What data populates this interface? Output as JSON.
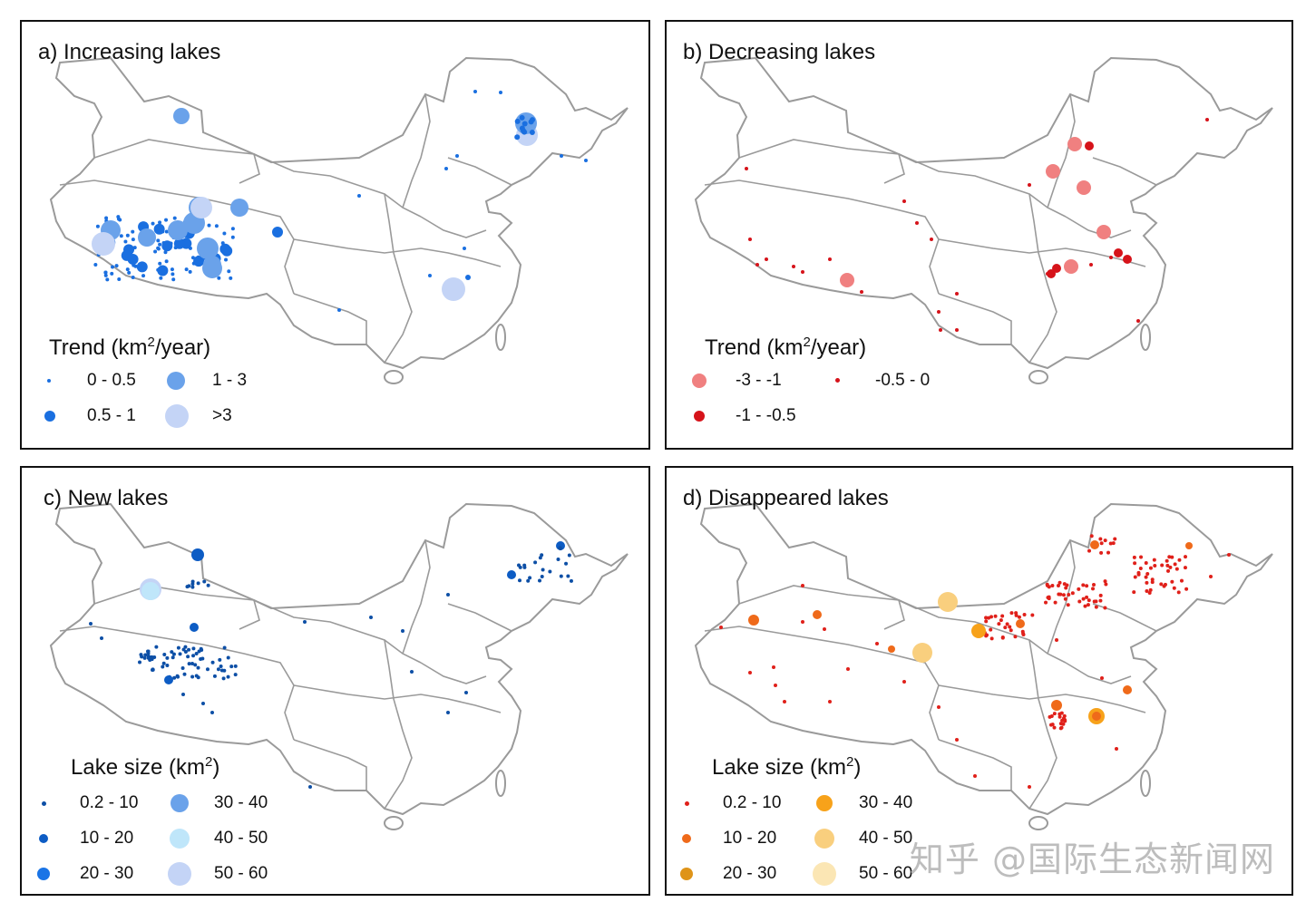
{
  "panels": {
    "a": {
      "title": "a) Increasing lakes",
      "legend_title_pre": "Trend (km",
      "legend_title_sup": "2",
      "legend_title_post": "/year)",
      "legend": [
        {
          "label": "0 - 0.5",
          "color": "#1a6fe0"
        },
        {
          "label": "1 - 3",
          "color": "#6aa2ea"
        },
        {
          "label": "0.5 - 1",
          "color": "#1a6fe0"
        },
        {
          "label": ">3",
          "color": "#c4d4f6"
        }
      ]
    },
    "b": {
      "title": "b) Decreasing lakes",
      "legend_title_pre": "Trend (km",
      "legend_title_sup": "2",
      "legend_title_post": "/year)",
      "legend": [
        {
          "label": "-3 - -1",
          "color": "#f08080"
        },
        {
          "label": "-0.5 - 0",
          "color": "#d6131a"
        },
        {
          "label": "-1 - -0.5",
          "color": "#d6131a"
        }
      ]
    },
    "c": {
      "title": "c) New lakes",
      "legend_title_pre": "Lake size (km",
      "legend_title_sup": "2",
      "legend_title_post": ")",
      "legend": [
        {
          "label": "0.2 - 10",
          "color": "#0d4fa6"
        },
        {
          "label": "30 - 40",
          "color": "#6aa2ea"
        },
        {
          "label": "10 - 20",
          "color": "#0d5cc4"
        },
        {
          "label": "40 - 50",
          "color": "#bfe6fa"
        },
        {
          "label": "20 - 30",
          "color": "#1a74e6"
        },
        {
          "label": "50 - 60",
          "color": "#c4d4f6"
        }
      ]
    },
    "d": {
      "title": "d) Disappeared lakes",
      "legend_title_pre": "Lake size (km",
      "legend_title_sup": "2",
      "legend_title_post": ")",
      "legend": [
        {
          "label": "0.2 - 10",
          "color": "#e0201a"
        },
        {
          "label": "30 - 40",
          "color": "#f7a21a"
        },
        {
          "label": "10 - 20",
          "color": "#ef6a1a"
        },
        {
          "label": "40 - 50",
          "color": "#f9cf7e"
        },
        {
          "label": "20 - 30",
          "color": "#df9418"
        },
        {
          "label": "50 - 60",
          "color": "#fbe6b4"
        }
      ]
    }
  },
  "colors": {
    "map_outline": "#9a9a9a",
    "frame": "#111111"
  },
  "watermark": "知乎 @国际生态新闻网"
}
